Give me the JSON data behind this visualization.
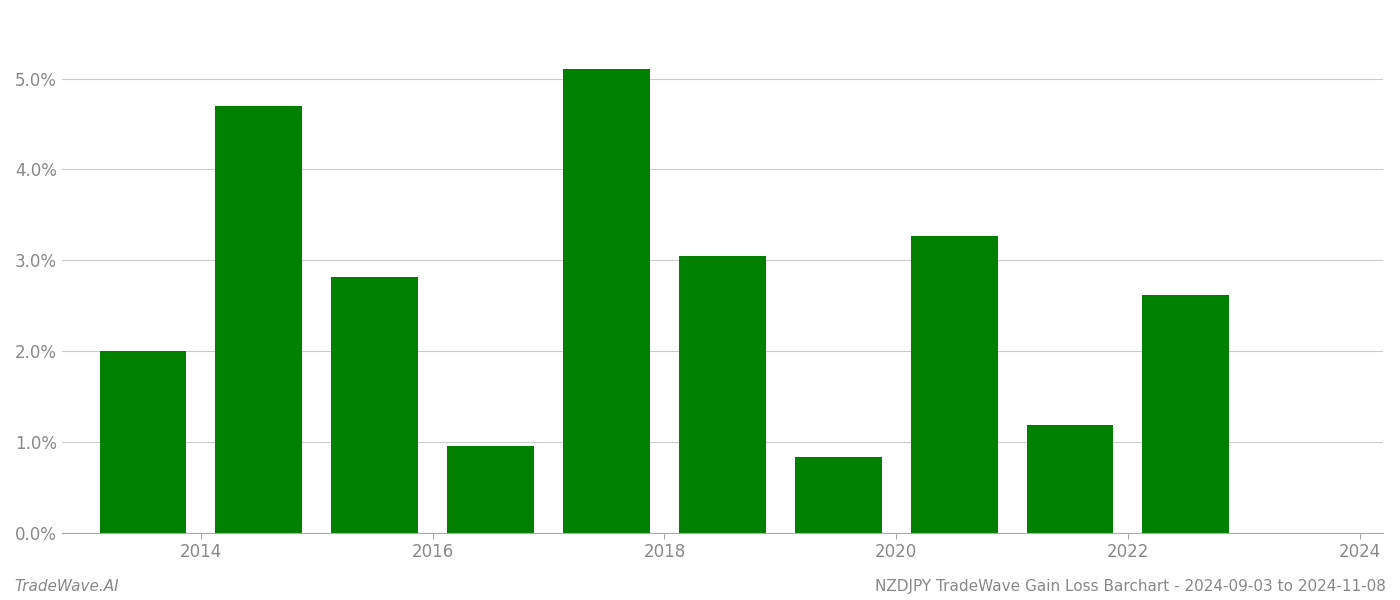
{
  "years": [
    2014,
    2015,
    2016,
    2017,
    2018,
    2019,
    2020,
    2021,
    2022,
    2023
  ],
  "values": [
    0.02,
    0.047,
    0.0282,
    0.0095,
    0.051,
    0.0305,
    0.0083,
    0.0327,
    0.0118,
    0.0262
  ],
  "bar_color": "#008000",
  "ylim": [
    0,
    0.057
  ],
  "ytick_vals": [
    0.0,
    0.01,
    0.02,
    0.03,
    0.04,
    0.05
  ],
  "ytick_labels": [
    "0.0%",
    "1.0%",
    "2.0%",
    "3.0%",
    "4.0%",
    "5.0%"
  ],
  "xtick_positions": [
    2014.5,
    2016.5,
    2018.5,
    2020.5,
    2022.5,
    2024.5
  ],
  "xtick_labels": [
    "2014",
    "2016",
    "2018",
    "2020",
    "2022",
    "2024"
  ],
  "xlim_left": 2013.3,
  "xlim_right": 2024.7,
  "footer_left": "TradeWave.AI",
  "footer_right": "NZDJPY TradeWave Gain Loss Barchart - 2024-09-03 to 2024-11-08",
  "background_color": "#ffffff",
  "grid_color": "#cccccc",
  "bar_width": 0.75,
  "fig_width": 14.0,
  "fig_height": 6.0
}
